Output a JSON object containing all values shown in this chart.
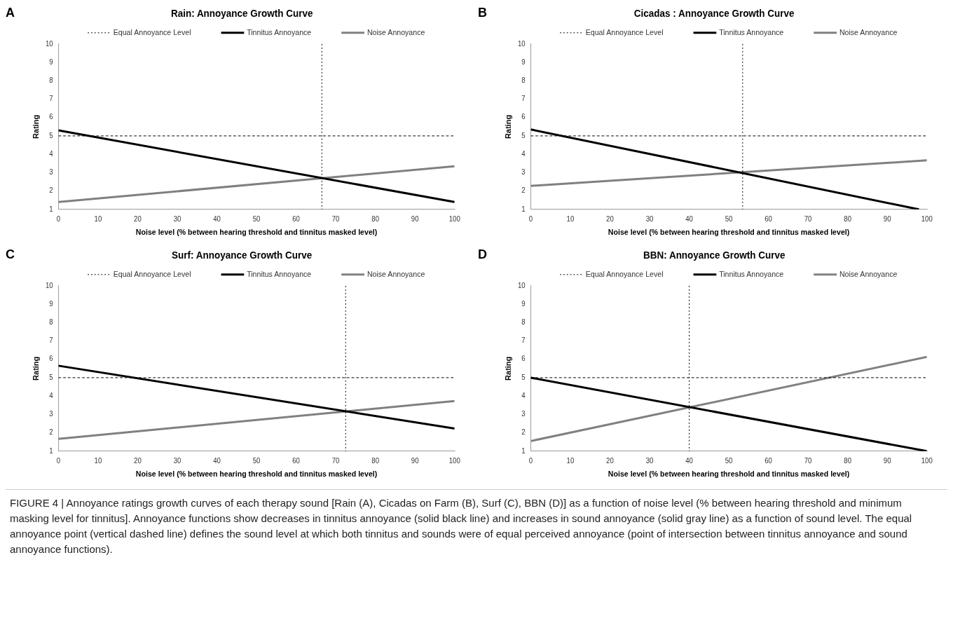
{
  "chart_data": [
    {
      "type": "line",
      "title": "Rain: Annoyance Growth Curve",
      "xlabel": "Noise level (% between hearing threshold and tinnitus masked level)",
      "ylabel": "Rating",
      "xlim": [
        0,
        100
      ],
      "xticks": [
        0,
        10,
        20,
        30,
        40,
        50,
        60,
        70,
        80,
        90,
        100
      ],
      "ylim": [
        1,
        10
      ],
      "yticks": [
        1,
        2,
        3,
        4,
        5,
        6,
        7,
        8,
        9,
        10
      ],
      "grid": false,
      "legend": "top",
      "annotations": [
        "A"
      ],
      "series": [
        {
          "name": "Tinnitus Annoyance",
          "color": "#000000",
          "line_style": "solid",
          "x": [
            0,
            100
          ],
          "values": [
            5.3,
            1.4
          ]
        },
        {
          "name": "Noise Annoyance",
          "color": "#808080",
          "line_style": "solid",
          "x": [
            0,
            100
          ],
          "values": [
            1.4,
            3.35
          ]
        }
      ],
      "ref_lines": [
        {
          "axis": "x",
          "value": 66.5,
          "label": "Equal Annoyance Level",
          "color": "#000000",
          "line_style": "dotted"
        },
        {
          "axis": "y",
          "value": 5,
          "color": "#000000",
          "line_style": "dashed"
        }
      ]
    },
    {
      "type": "line",
      "title": "Cicadas : Annoyance Growth Curve",
      "xlabel": "Noise level (% between hearing threshold and tinnitus masked level)",
      "ylabel": "Rating",
      "xlim": [
        0,
        100
      ],
      "xticks": [
        0,
        10,
        20,
        30,
        40,
        50,
        60,
        70,
        80,
        90,
        100
      ],
      "ylim": [
        1,
        10
      ],
      "yticks": [
        1,
        2,
        3,
        4,
        5,
        6,
        7,
        8,
        9,
        10
      ],
      "grid": false,
      "legend": "top",
      "annotations": [
        "B"
      ],
      "series": [
        {
          "name": "Tinnitus Annoyance",
          "color": "#000000",
          "line_style": "solid",
          "x": [
            0,
            98
          ],
          "values": [
            5.35,
            1
          ]
        },
        {
          "name": "Noise Annoyance",
          "color": "#808080",
          "line_style": "solid",
          "x": [
            0,
            100
          ],
          "values": [
            2.28,
            3.67
          ]
        }
      ],
      "ref_lines": [
        {
          "axis": "x",
          "value": 53.5,
          "label": "Equal Annoyance Level",
          "color": "#000000",
          "line_style": "dotted"
        },
        {
          "axis": "y",
          "value": 5,
          "color": "#000000",
          "line_style": "dashed"
        }
      ]
    },
    {
      "type": "line",
      "title": "Surf: Annoyance Growth Curve",
      "xlabel": "Noise level (% between hearing threshold and tinnitus masked level)",
      "ylabel": "Rating",
      "xlim": [
        0,
        100
      ],
      "xticks": [
        0,
        10,
        20,
        30,
        40,
        50,
        60,
        70,
        80,
        90,
        100
      ],
      "ylim": [
        1,
        10
      ],
      "yticks": [
        1,
        2,
        3,
        4,
        5,
        6,
        7,
        8,
        9,
        10
      ],
      "grid": false,
      "legend": "top",
      "annotations": [
        "C"
      ],
      "series": [
        {
          "name": "Tinnitus Annoyance",
          "color": "#000000",
          "line_style": "solid",
          "x": [
            0,
            100
          ],
          "values": [
            5.65,
            2.23
          ]
        },
        {
          "name": "Noise Annoyance",
          "color": "#808080",
          "line_style": "solid",
          "x": [
            0,
            100
          ],
          "values": [
            1.67,
            3.73
          ]
        }
      ],
      "ref_lines": [
        {
          "axis": "x",
          "value": 72.5,
          "label": "Equal Annoyance Level",
          "color": "#000000",
          "line_style": "dotted"
        },
        {
          "axis": "y",
          "value": 5,
          "color": "#000000",
          "line_style": "dashed"
        }
      ]
    },
    {
      "type": "line",
      "title": "BBN: Annoyance Growth Curve",
      "xlabel": "Noise level (% between hearing threshold and tinnitus masked level)",
      "ylabel": "Rating",
      "xlim": [
        0,
        100
      ],
      "xticks": [
        0,
        10,
        20,
        30,
        40,
        50,
        60,
        70,
        80,
        90,
        100
      ],
      "ylim": [
        1,
        10
      ],
      "yticks": [
        1,
        2,
        3,
        4,
        5,
        6,
        7,
        8,
        9,
        10
      ],
      "grid": false,
      "legend": "top",
      "annotations": [
        "D",
        "FIGURE 4 | Annoyance ratings growth curves of each therapy sound [Rain (A), Cicadas on Farm (B), Surf (C), BBN (D)] as a function of noise level (% between hearing threshold and minimum masking level for tinnitus]. Annoyance functions show decreases in tinnitus annoyance (solid black line) and increases in sound annoyance (solid gray line) as a function of sound level. The equal annoyance point (vertical dashed line) defines the sound level at which both tinnitus and sounds were of equal perceived annoyance (point of intersection between tinnitus annoyance and sound annoyance functions)."
      ],
      "series": [
        {
          "name": "Tinnitus Annoyance",
          "color": "#000000",
          "line_style": "solid",
          "x": [
            0,
            100
          ],
          "values": [
            5,
            1
          ]
        },
        {
          "name": "Noise Annoyance",
          "color": "#808080",
          "line_style": "solid",
          "x": [
            0,
            100
          ],
          "values": [
            1.55,
            6.13
          ]
        }
      ],
      "ref_lines": [
        {
          "axis": "x",
          "value": 40,
          "label": "Equal Annoyance Level",
          "color": "#000000",
          "line_style": "dotted"
        },
        {
          "axis": "y",
          "value": 5,
          "color": "#000000",
          "line_style": "dashed"
        }
      ]
    }
  ]
}
